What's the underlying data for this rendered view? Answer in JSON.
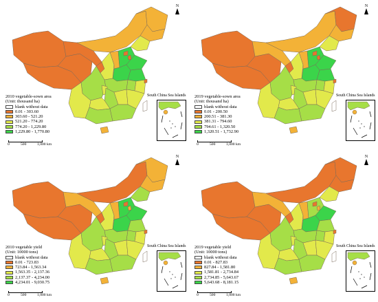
{
  "panels": [
    {
      "title": "2010 vegetable-sown area",
      "unit": "(Unit: thousand ha)",
      "blank_label": "blank without data",
      "classes": [
        {
          "label": "0.01 - 303.60",
          "color": "#e8762e"
        },
        {
          "label": "303.60 - 521.20",
          "color": "#f3b237"
        },
        {
          "label": "521.20 - 774.20",
          "color": "#e2e94b"
        },
        {
          "label": "774.20 - 1,229.80",
          "color": "#a6de47"
        },
        {
          "label": "1,229.80 - 1,770.80",
          "color": "#3bd44a"
        }
      ]
    },
    {
      "title": "2019 vegetable-sown area",
      "unit": "(Unit: thousand ha)",
      "blank_label": "blank without data",
      "classes": [
        {
          "label": "0.01 - 200.50",
          "color": "#e8762e"
        },
        {
          "label": "200.51 - 381.30",
          "color": "#f3b237"
        },
        {
          "label": "381.31 - 794.60",
          "color": "#e2e94b"
        },
        {
          "label": "794.61 - 1,320.50",
          "color": "#a6de47"
        },
        {
          "label": "1,320.51 - 1,732.90",
          "color": "#3bd44a"
        }
      ]
    },
    {
      "title": "2010 vegetable yield",
      "unit": "(Unit: 10000 tons)",
      "blank_label": "blank without data",
      "classes": [
        {
          "label": "0.01 - 723.83",
          "color": "#e8762e"
        },
        {
          "label": "723.84 - 1,563.34",
          "color": "#f3b237"
        },
        {
          "label": "1,563.35 - 2,137.36",
          "color": "#e2e94b"
        },
        {
          "label": "2,137.37 - 4,234.00",
          "color": "#a6de47"
        },
        {
          "label": "4,234.01 - 9,030.75",
          "color": "#3bd44a"
        }
      ]
    },
    {
      "title": "2019 vegetable yield",
      "unit": "(Unit: 10000 tons)",
      "blank_label": "blank without data",
      "classes": [
        {
          "label": "0.01 - 827.83",
          "color": "#e8762e"
        },
        {
          "label": "827.84 - 1,581.80",
          "color": "#f3b237"
        },
        {
          "label": "1,581.81 - 2,734.84",
          "color": "#e2e94b"
        },
        {
          "label": "2,734.85 - 5,643.67",
          "color": "#a6de47"
        },
        {
          "label": "5,643.68 - 8,181.15",
          "color": "#3bd44a"
        }
      ]
    }
  ],
  "north_label": "N",
  "inset_label": "South China Sea Islands",
  "scale": {
    "zero": "0",
    "mid": "500",
    "end": "1,000 km"
  },
  "blank_color": "#ffffff",
  "border_color": "#7a6a5a"
}
